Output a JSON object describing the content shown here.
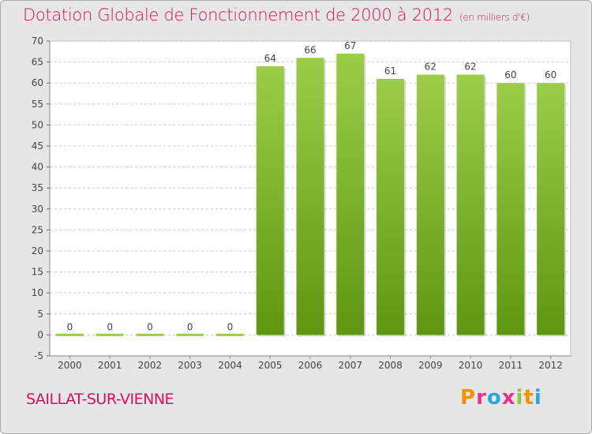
{
  "header": {
    "title": "Dotation Globale de Fonctionnement de 2000 à 2012",
    "unit": "(en milliers d'€)"
  },
  "footer": {
    "commune": "SAILLAT-SUR-VIENNE",
    "logo_letters": [
      "P",
      "r",
      "o",
      "x",
      "i",
      "t",
      "i"
    ],
    "logo_colors": [
      "#f39200",
      "#e8308a",
      "#2aa7df",
      "#e8308a",
      "#8cc63f",
      "#f39200",
      "#2aa7df"
    ]
  },
  "chart_data": {
    "type": "bar",
    "categories": [
      "2000",
      "2001",
      "2002",
      "2003",
      "2004",
      "2005",
      "2006",
      "2007",
      "2008",
      "2009",
      "2010",
      "2011",
      "2012"
    ],
    "values": [
      0,
      0,
      0,
      0,
      0,
      64,
      66,
      67,
      61,
      62,
      62,
      60,
      60
    ],
    "data_labels": [
      "0",
      "0",
      "0",
      "0",
      "0",
      "64",
      "66",
      "67",
      "61",
      "62",
      "62",
      "60",
      "60"
    ],
    "ylim": [
      -5,
      70
    ],
    "yticks": [
      -5,
      0,
      5,
      10,
      15,
      20,
      25,
      30,
      35,
      40,
      45,
      50,
      55,
      60,
      65,
      70
    ],
    "grid": true,
    "colors": {
      "bar_top": "#9ccd4a",
      "bar_bottom": "#5e9612",
      "grid": "#c8c8c8",
      "plot_bg": "#ffffff"
    }
  }
}
